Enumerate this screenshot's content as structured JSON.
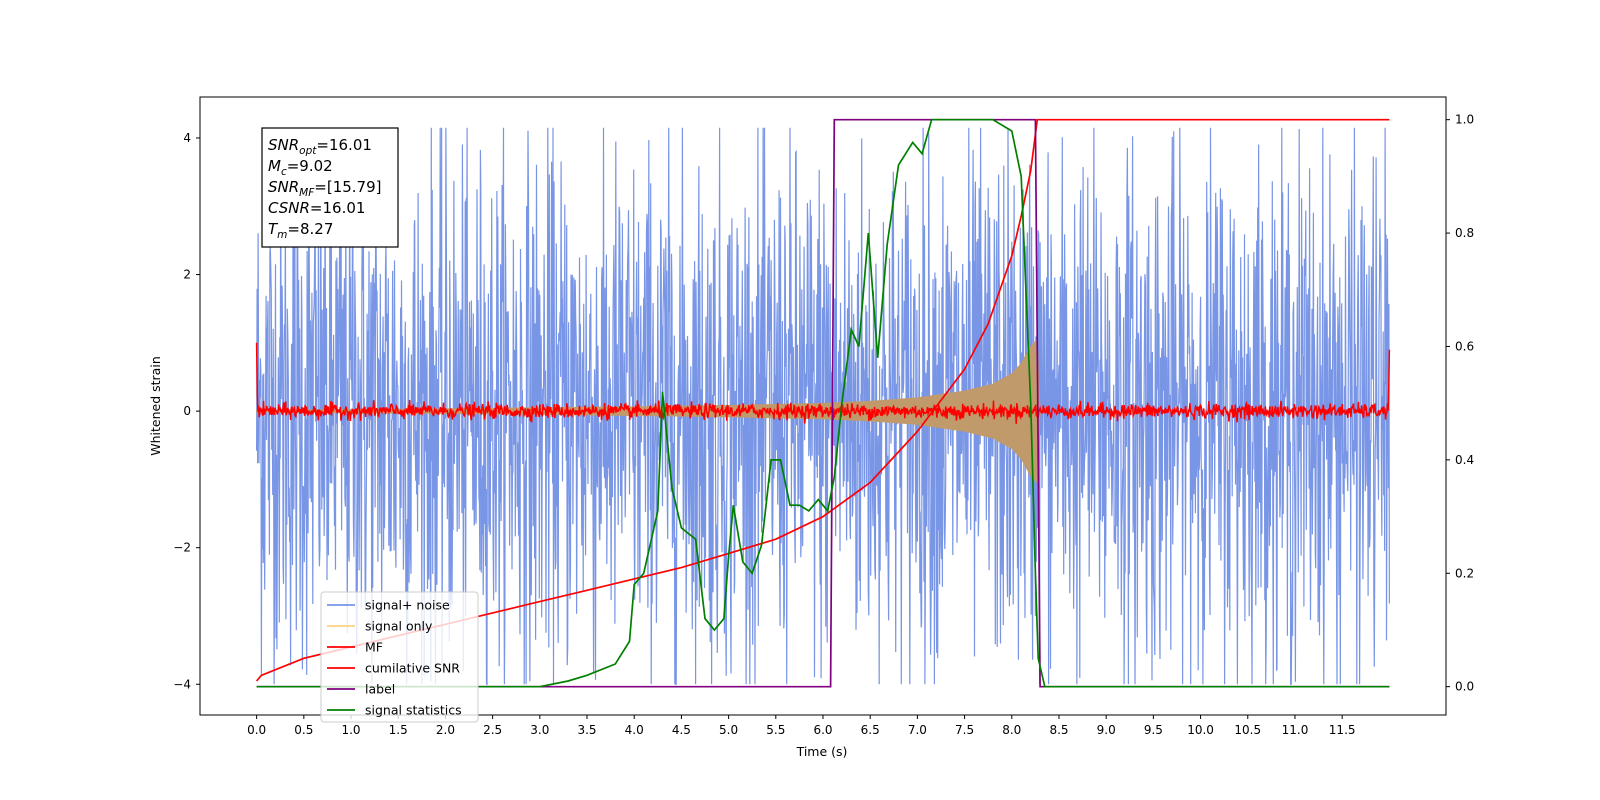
{
  "chart_data": {
    "type": "line",
    "xlabel": "Time (s)",
    "ylabel": "Whitened strain",
    "xlim": [
      -0.6,
      12.6
    ],
    "ylim": [
      -4.45,
      4.6
    ],
    "ylim_right": [
      -0.05,
      1.04
    ],
    "x_ticks": [
      "0.0",
      "0.5",
      "1.0",
      "1.5",
      "2.0",
      "2.5",
      "3.0",
      "3.5",
      "4.0",
      "4.5",
      "5.0",
      "5.5",
      "6.0",
      "6.5",
      "7.0",
      "7.5",
      "8.0",
      "8.5",
      "9.0",
      "9.5",
      "10.0",
      "10.5",
      "11.0",
      "11.5"
    ],
    "y_ticks_left": [
      "−4",
      "−2",
      "0",
      "2",
      "4"
    ],
    "y_ticks_right": [
      "0.0",
      "0.2",
      "0.4",
      "0.6",
      "0.8",
      "1.0"
    ],
    "legend": {
      "placement": "lower-left",
      "entries": [
        {
          "name": "signal+ noise",
          "color": "#7895e6"
        },
        {
          "name": "signal only",
          "color": "#ffd280"
        },
        {
          "name": "MF",
          "color": "#ff0000"
        },
        {
          "name": "cumilative SNR",
          "color": "#ff0000"
        },
        {
          "name": "label",
          "color": "#800080"
        },
        {
          "name": "signal statistics",
          "color": "#008000"
        }
      ]
    },
    "info_box": {
      "lines": [
        {
          "var": "SNR",
          "sub": "opt",
          "rest": "=16.01"
        },
        {
          "var": "M",
          "sub": "c",
          "rest": "=9.02"
        },
        {
          "var": "SNR",
          "sub": "MF",
          "rest": "=[15.79]"
        },
        {
          "var": "CSNR",
          "sub": "",
          "rest": "=16.01"
        },
        {
          "var": "T",
          "sub": "m",
          "rest": "=8.27"
        }
      ]
    },
    "series": [
      {
        "name": "signal+ noise",
        "axis": "left",
        "color": "#7895e6",
        "description_stats": {
          "x_start": 0.0,
          "x_end": 12.0,
          "typical_amplitude": 2.6,
          "max_abs": 4.2
        }
      },
      {
        "name": "signal only",
        "axis": "left",
        "color": "#ffd280",
        "envelope": {
          "x": [
            0.0,
            2.0,
            4.0,
            5.0,
            6.0,
            6.5,
            7.0,
            7.5,
            7.8,
            8.0,
            8.1,
            8.2,
            8.27,
            8.3
          ],
          "amp": [
            0.02,
            0.04,
            0.07,
            0.09,
            0.12,
            0.15,
            0.2,
            0.3,
            0.4,
            0.55,
            0.7,
            0.95,
            1.05,
            0.0
          ]
        }
      },
      {
        "name": "MF",
        "axis": "left",
        "color": "#ff0000",
        "description_stats": {
          "x_start": 0.0,
          "x_end": 12.0,
          "start_value": 1.0,
          "typical_amplitude": 0.12
        }
      },
      {
        "name": "cumilative SNR",
        "axis": "right",
        "color": "#ff0000",
        "x": [
          0.0,
          0.05,
          0.5,
          1.0,
          1.5,
          2.0,
          2.5,
          3.0,
          3.5,
          4.0,
          4.5,
          5.0,
          5.5,
          6.0,
          6.5,
          7.0,
          7.5,
          7.75,
          8.0,
          8.1,
          8.2,
          8.27,
          12.0
        ],
        "y": [
          0.01,
          0.02,
          0.05,
          0.07,
          0.09,
          0.11,
          0.13,
          0.15,
          0.17,
          0.19,
          0.21,
          0.235,
          0.26,
          0.3,
          0.36,
          0.45,
          0.56,
          0.64,
          0.76,
          0.83,
          0.91,
          1.0,
          1.0
        ]
      },
      {
        "name": "label",
        "axis": "right",
        "color": "#800080",
        "x": [
          0.0,
          6.08,
          6.12,
          8.25,
          8.3,
          12.0
        ],
        "y": [
          0.0,
          0.0,
          1.0,
          1.0,
          0.0,
          0.0
        ]
      },
      {
        "name": "signal statistics",
        "axis": "right",
        "color": "#008000",
        "x": [
          0.0,
          0.4,
          0.8,
          1.2,
          1.6,
          2.0,
          2.3,
          2.6,
          3.0,
          3.3,
          3.5,
          3.8,
          3.95,
          4.0,
          4.1,
          4.25,
          4.3,
          4.4,
          4.5,
          4.65,
          4.75,
          4.85,
          4.95,
          5.0,
          5.05,
          5.15,
          5.25,
          5.35,
          5.45,
          5.55,
          5.65,
          5.75,
          5.85,
          5.95,
          6.05,
          6.12,
          6.2,
          6.3,
          6.38,
          6.48,
          6.58,
          6.68,
          6.8,
          6.95,
          7.05,
          7.15,
          7.3,
          7.5,
          7.8,
          8.0,
          8.1,
          8.15,
          8.2,
          8.25,
          8.28,
          8.35,
          8.5,
          9.0,
          12.0
        ],
        "y": [
          0.0,
          0.0,
          0.0,
          0.0,
          0.0,
          0.0,
          0.0,
          0.0,
          0.0,
          0.01,
          0.02,
          0.04,
          0.08,
          0.18,
          0.2,
          0.31,
          0.52,
          0.35,
          0.28,
          0.26,
          0.12,
          0.1,
          0.12,
          0.23,
          0.32,
          0.22,
          0.2,
          0.25,
          0.4,
          0.4,
          0.32,
          0.32,
          0.31,
          0.33,
          0.31,
          0.37,
          0.5,
          0.63,
          0.6,
          0.8,
          0.58,
          0.78,
          0.92,
          0.96,
          0.94,
          1.0,
          1.0,
          1.0,
          1.0,
          0.98,
          0.9,
          0.7,
          0.5,
          0.2,
          0.05,
          0.0,
          0.0,
          0.0,
          0.0
        ]
      }
    ]
  }
}
